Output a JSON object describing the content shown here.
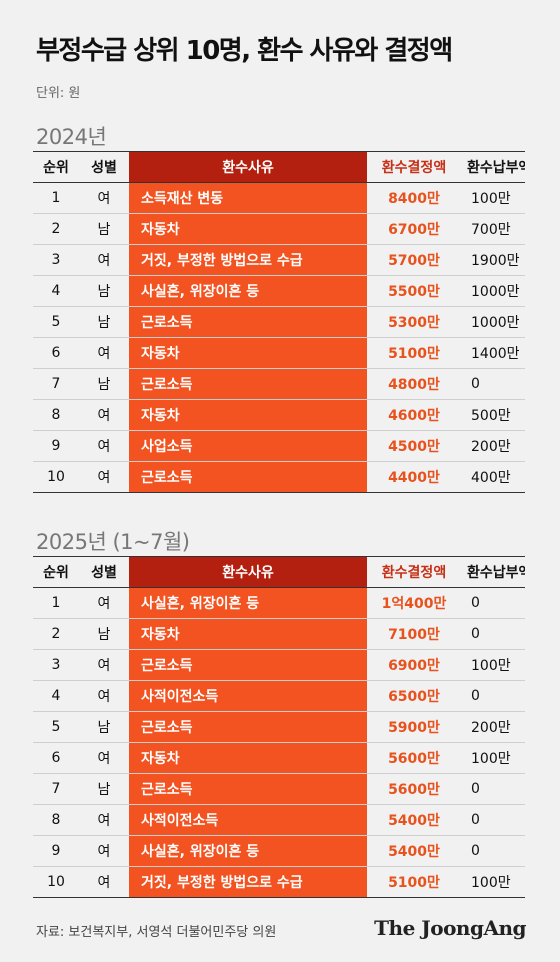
{
  "title": "부정수급 상위 10명, 환수 사유와 결정액",
  "unit": "단위: 원",
  "columns": {
    "rank": "순위",
    "sex": "성별",
    "reason": "환수사유",
    "amount": "환수결정액",
    "paid": "환수납부액"
  },
  "sections": [
    {
      "year": "2024년",
      "rows": [
        {
          "rank": "1",
          "sex": "여",
          "reason": "소득재산 변동",
          "amount": "8400만",
          "paid": "100만"
        },
        {
          "rank": "2",
          "sex": "남",
          "reason": "자동차",
          "amount": "6700만",
          "paid": "700만"
        },
        {
          "rank": "3",
          "sex": "여",
          "reason": "거짓, 부정한 방법으로 수급",
          "amount": "5700만",
          "paid": "1900만"
        },
        {
          "rank": "4",
          "sex": "남",
          "reason": "사실혼, 위장이혼 등",
          "amount": "5500만",
          "paid": "1000만"
        },
        {
          "rank": "5",
          "sex": "남",
          "reason": "근로소득",
          "amount": "5300만",
          "paid": "1000만"
        },
        {
          "rank": "6",
          "sex": "여",
          "reason": "자동차",
          "amount": "5100만",
          "paid": "1400만"
        },
        {
          "rank": "7",
          "sex": "남",
          "reason": "근로소득",
          "amount": "4800만",
          "paid": "0"
        },
        {
          "rank": "8",
          "sex": "여",
          "reason": "자동차",
          "amount": "4600만",
          "paid": "500만"
        },
        {
          "rank": "9",
          "sex": "여",
          "reason": "사업소득",
          "amount": "4500만",
          "paid": "200만"
        },
        {
          "rank": "10",
          "sex": "여",
          "reason": "근로소득",
          "amount": "4400만",
          "paid": "400만"
        }
      ]
    },
    {
      "year": "2025년 (1~7월)",
      "rows": [
        {
          "rank": "1",
          "sex": "여",
          "reason": "사실혼, 위장이혼 등",
          "amount": "1억400만",
          "paid": "0"
        },
        {
          "rank": "2",
          "sex": "남",
          "reason": "자동차",
          "amount": "7100만",
          "paid": "0"
        },
        {
          "rank": "3",
          "sex": "여",
          "reason": "근로소득",
          "amount": "6900만",
          "paid": "100만"
        },
        {
          "rank": "4",
          "sex": "여",
          "reason": "사적이전소득",
          "amount": "6500만",
          "paid": "0"
        },
        {
          "rank": "5",
          "sex": "남",
          "reason": "근로소득",
          "amount": "5900만",
          "paid": "200만"
        },
        {
          "rank": "6",
          "sex": "여",
          "reason": "자동차",
          "amount": "5600만",
          "paid": "100만"
        },
        {
          "rank": "7",
          "sex": "남",
          "reason": "근로소득",
          "amount": "5600만",
          "paid": "0"
        },
        {
          "rank": "8",
          "sex": "여",
          "reason": "사적이전소득",
          "amount": "5400만",
          "paid": "0"
        },
        {
          "rank": "9",
          "sex": "여",
          "reason": "사실혼, 위장이혼 등",
          "amount": "5400만",
          "paid": "0"
        },
        {
          "rank": "10",
          "sex": "여",
          "reason": "거짓, 부정한 방법으로 수급",
          "amount": "5100만",
          "paid": "100만"
        }
      ]
    }
  ],
  "source": "자료: 보건복지부, 서영석 더불어민주당 의원",
  "logo": "The JoongAng",
  "colors": {
    "reason_header": "#b3200f",
    "reason_cell": "#f25320",
    "amount_text": "#e8521d"
  }
}
